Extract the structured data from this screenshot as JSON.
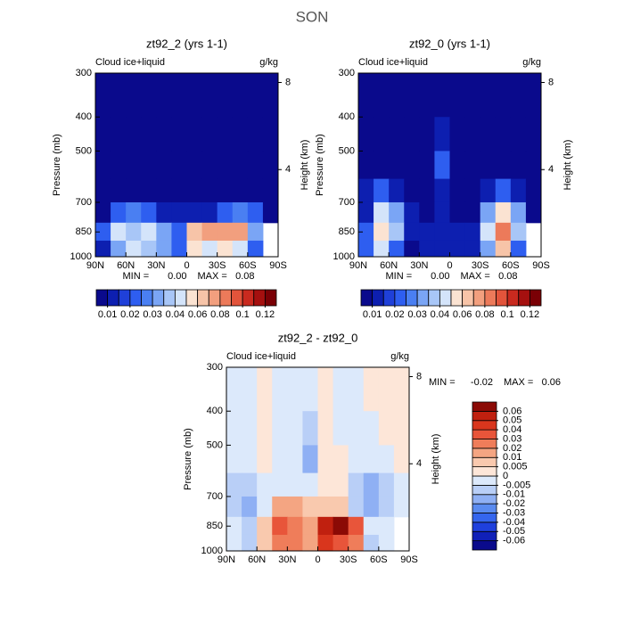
{
  "title": "SON",
  "chart_data": [
    {
      "type": "contour",
      "title": "zt92_2 (yrs 1-1)",
      "left_string": "Cloud ice+liquid",
      "right_string": "g/kg",
      "ylabel": "Pressure (mb)",
      "y2label": "Height (km)",
      "ylog": true,
      "xlim": [
        90,
        -90
      ],
      "xticks": [
        {
          "value": 90,
          "label": "90N"
        },
        {
          "value": 60,
          "label": "60N"
        },
        {
          "value": 30,
          "label": "30N"
        },
        0,
        {
          "value": -30,
          "label": "30S"
        },
        {
          "value": -60,
          "label": "60S"
        },
        {
          "value": -90,
          "label": "90S"
        }
      ],
      "ylim": [
        1000,
        300
      ],
      "yticks": [
        300,
        400,
        500,
        700,
        850,
        1000
      ],
      "y2lim": [
        0,
        8.43
      ],
      "y2ticks": [
        4,
        8
      ],
      "min_text": "MIN =",
      "min": {
        "value": 0,
        "label": "0.00"
      },
      "max_text": "MAX =",
      "max": 0.08,
      "x": [
        82.5,
        67.5,
        52.5,
        37.5,
        22.5,
        7.5,
        -7.5,
        -22.5,
        -37.5,
        -52.5,
        -67.5,
        -82.5
      ],
      "y": [
        350,
        450,
        550,
        650,
        750,
        850,
        950
      ],
      "z": [
        [
          0.002,
          0.002,
          0.002,
          0.002,
          0.002,
          0.002,
          0.002,
          0.002,
          0.002,
          0.002,
          0.002,
          0.002
        ],
        [
          0.002,
          0.002,
          0.002,
          0.002,
          0.002,
          0.002,
          0.002,
          0.002,
          0.002,
          0.002,
          0.002,
          0.002
        ],
        [
          0.002,
          0.002,
          0.002,
          0.002,
          0.002,
          0.008,
          0.002,
          0.002,
          0.002,
          0.002,
          0.002,
          0.002
        ],
        [
          0.002,
          0.004,
          0.006,
          0.005,
          0.004,
          0.004,
          0.003,
          0.003,
          0.003,
          0.004,
          0.004,
          0.003
        ],
        [
          0.006,
          0.02,
          0.025,
          0.02,
          0.015,
          0.01,
          0.012,
          0.015,
          0.02,
          0.025,
          0.02,
          0.005
        ],
        [
          0.02,
          0.04,
          0.035,
          0.04,
          0.03,
          0.02,
          0.06,
          0.07,
          0.07,
          0.075,
          0.03,
          null
        ],
        [
          0.015,
          0.03,
          0.04,
          0.035,
          0.03,
          0.02,
          0.05,
          0.045,
          0.05,
          0.04,
          0.02,
          null
        ]
      ],
      "colorbar": {
        "orientation": "horizontal",
        "levels": [
          0.01,
          0.02,
          0.03,
          0.04,
          0.06,
          0.08,
          0.1,
          0.12
        ],
        "colors": [
          "#0a0a8c",
          "#0d1fb0",
          "#1f40d9",
          "#2e5ef0",
          "#4a7ff2",
          "#7aa5f5",
          "#a8c6f7",
          "#d4e4fa",
          "#fbe3d2",
          "#f7c4a8",
          "#f29f7e",
          "#ec7a5a",
          "#e2543b",
          "#c92a1f",
          "#a5100f",
          "#7a0005"
        ]
      }
    },
    {
      "type": "contour",
      "title": "zt92_0 (yrs 1-1)",
      "left_string": "Cloud ice+liquid",
      "right_string": "g/kg",
      "ylabel": "Pressure (mb)",
      "y2label": "Height (km)",
      "ylog": true,
      "xlim": [
        90,
        -90
      ],
      "xticks": [
        {
          "value": 90,
          "label": "90N"
        },
        {
          "value": 60,
          "label": "60N"
        },
        {
          "value": 30,
          "label": "30N"
        },
        0,
        {
          "value": -30,
          "label": "30S"
        },
        {
          "value": -60,
          "label": "60S"
        },
        {
          "value": -90,
          "label": "90S"
        }
      ],
      "ylim": [
        1000,
        300
      ],
      "yticks": [
        300,
        400,
        500,
        700,
        850,
        1000
      ],
      "y2lim": [
        0,
        8.43
      ],
      "y2ticks": [
        4,
        8
      ],
      "min_text": "MIN =",
      "min": {
        "value": 0,
        "label": "0.00"
      },
      "max_text": "MAX =",
      "max": 0.08,
      "x": [
        82.5,
        67.5,
        52.5,
        37.5,
        22.5,
        7.5,
        -7.5,
        -22.5,
        -37.5,
        -52.5,
        -67.5,
        -82.5
      ],
      "y": [
        350,
        450,
        550,
        650,
        750,
        850,
        950
      ],
      "z": [
        [
          0.002,
          0.002,
          0.002,
          0.002,
          0.002,
          0.006,
          0.002,
          0.002,
          0.002,
          0.002,
          0.002,
          0.002
        ],
        [
          0.002,
          0.002,
          0.002,
          0.002,
          0.002,
          0.01,
          0.002,
          0.002,
          0.002,
          0.002,
          0.002,
          0.002
        ],
        [
          0.003,
          0.006,
          0.005,
          0.003,
          0.002,
          0.02,
          0.003,
          0.002,
          0.002,
          0.003,
          0.004,
          0.002
        ],
        [
          0.01,
          0.02,
          0.015,
          0.006,
          0.004,
          0.012,
          0.004,
          0.004,
          0.01,
          0.02,
          0.015,
          0.005
        ],
        [
          0.015,
          0.04,
          0.03,
          0.01,
          0.006,
          0.015,
          0.006,
          0.008,
          0.03,
          0.05,
          0.03,
          0.006
        ],
        [
          0.02,
          0.05,
          0.035,
          0.01,
          0.01,
          0.015,
          0.01,
          0.015,
          0.04,
          0.08,
          0.035,
          null
        ],
        [
          0.02,
          0.04,
          0.02,
          0.006,
          0.01,
          0.01,
          0.01,
          0.01,
          0.03,
          0.06,
          0.02,
          null
        ]
      ],
      "colorbar": {
        "orientation": "horizontal",
        "levels": [
          0.01,
          0.02,
          0.03,
          0.04,
          0.06,
          0.08,
          0.1,
          0.12
        ],
        "colors": [
          "#0a0a8c",
          "#0d1fb0",
          "#1f40d9",
          "#2e5ef0",
          "#4a7ff2",
          "#7aa5f5",
          "#a8c6f7",
          "#d4e4fa",
          "#fbe3d2",
          "#f7c4a8",
          "#f29f7e",
          "#ec7a5a",
          "#e2543b",
          "#c92a1f",
          "#a5100f",
          "#7a0005"
        ]
      }
    },
    {
      "type": "contour",
      "title": "zt92_2 - zt92_0",
      "left_string": "Cloud ice+liquid",
      "right_string": "g/kg",
      "ylabel": "Pressure (mb)",
      "y2label": "Height (km)",
      "ylog": true,
      "xlim": [
        90,
        -90
      ],
      "xticks": [
        {
          "value": 90,
          "label": "90N"
        },
        {
          "value": 60,
          "label": "60N"
        },
        {
          "value": 30,
          "label": "30N"
        },
        0,
        {
          "value": -30,
          "label": "30S"
        },
        {
          "value": -60,
          "label": "60S"
        },
        {
          "value": -90,
          "label": "90S"
        }
      ],
      "ylim": [
        1000,
        300
      ],
      "yticks": [
        300,
        400,
        500,
        700,
        850,
        1000
      ],
      "y2lim": [
        0,
        8.43
      ],
      "y2ticks": [
        4,
        8
      ],
      "min_text": "MIN =",
      "min": -0.02,
      "max_text": "MAX =",
      "max": 0.06,
      "x": [
        82.5,
        67.5,
        52.5,
        37.5,
        22.5,
        7.5,
        -7.5,
        -22.5,
        -37.5,
        -52.5,
        -67.5,
        -82.5
      ],
      "y": [
        350,
        450,
        550,
        650,
        750,
        850,
        950
      ],
      "z": [
        [
          -0.004,
          -0.002,
          0.001,
          -0.002,
          -0.004,
          -0.003,
          0.001,
          -0.002,
          -0.004,
          0.001,
          0.001,
          0.001
        ],
        [
          -0.004,
          -0.003,
          0.001,
          -0.003,
          -0.004,
          -0.006,
          0.001,
          -0.003,
          -0.004,
          -0.002,
          0.001,
          0.001
        ],
        [
          -0.004,
          -0.004,
          0.001,
          -0.003,
          -0.003,
          -0.012,
          0.001,
          0.001,
          -0.004,
          -0.003,
          -0.002,
          0.001
        ],
        [
          -0.006,
          -0.008,
          -0.004,
          -0.001,
          -0.002,
          -0.004,
          0.004,
          0.001,
          -0.008,
          -0.015,
          -0.01,
          -0.002
        ],
        [
          -0.006,
          -0.012,
          -0.005,
          0.01,
          0.01,
          0.006,
          0.008,
          0.007,
          -0.01,
          -0.02,
          -0.008,
          -0.002
        ],
        [
          -0.005,
          -0.01,
          0.005,
          0.03,
          0.025,
          0.01,
          0.05,
          0.06,
          0.03,
          -0.005,
          -0.005,
          null
        ],
        [
          -0.004,
          -0.006,
          0.006,
          0.025,
          0.02,
          0.01,
          0.04,
          0.03,
          0.02,
          -0.01,
          -0.002,
          null
        ]
      ],
      "colorbar": {
        "orientation": "vertical",
        "levels": [
          -0.06,
          -0.05,
          -0.04,
          -0.03,
          -0.02,
          -0.01,
          -0.005,
          0,
          0.005,
          0.01,
          0.02,
          0.03,
          0.04,
          0.05,
          0.06
        ],
        "colors": [
          "#0a0a8c",
          "#1020b8",
          "#1f40dd",
          "#3566ee",
          "#5a8bf0",
          "#8fb0f4",
          "#b9cff7",
          "#dce9fb",
          "#fde6d8",
          "#f9c9ae",
          "#f4a582",
          "#ef7d5a",
          "#e8553a",
          "#d9361d",
          "#c0200f",
          "#8b0a05"
        ]
      }
    }
  ]
}
